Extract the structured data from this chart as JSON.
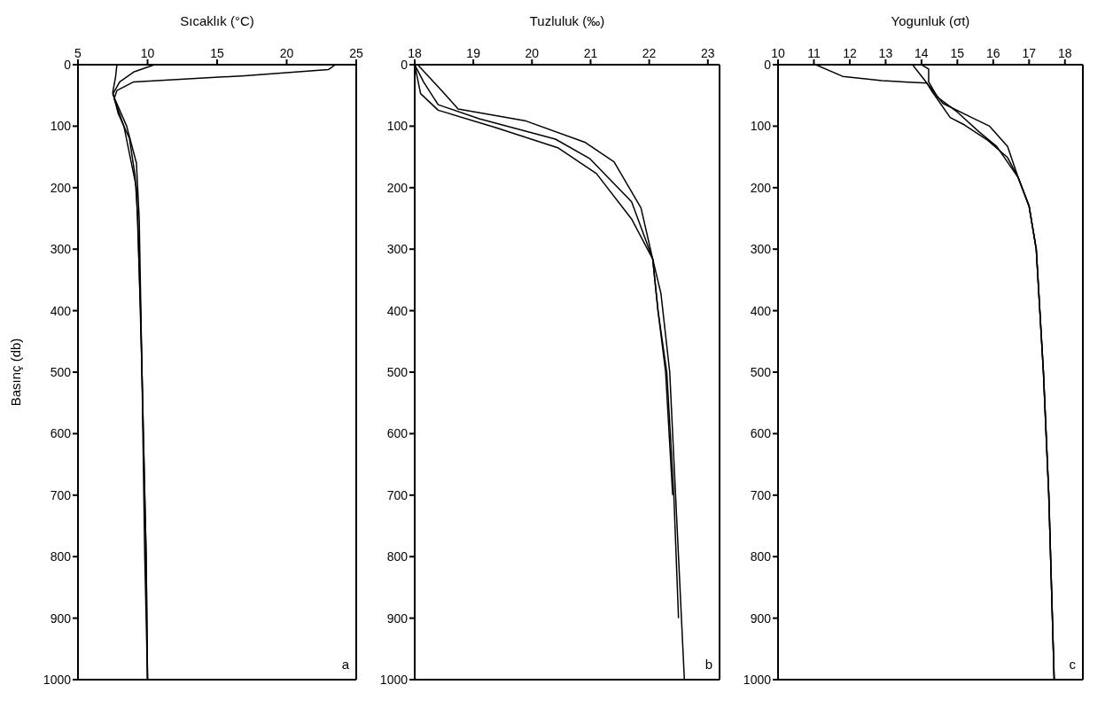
{
  "chart_data": [
    {
      "type": "line",
      "xlabel": "Sıcaklık (°C)",
      "ylabel": "Basınç (db)",
      "xlim": [
        5,
        25
      ],
      "xticks": [
        5,
        10,
        15,
        20,
        25
      ],
      "ylim": [
        1000,
        0
      ],
      "yticks": [
        0,
        100,
        200,
        300,
        400,
        500,
        600,
        700,
        800,
        900,
        1000
      ],
      "marker": "none",
      "line_style": "solid",
      "annotations": [
        "a"
      ],
      "series": [
        {
          "color": "#000000",
          "x": [
            23.5,
            23,
            17,
            9,
            7.8,
            7.6,
            8.3,
            9.2,
            9.5,
            9.7,
            9.9,
            10.0
          ],
          "values": [
            0,
            8,
            18,
            28,
            42,
            55,
            100,
            200,
            400,
            600,
            800,
            1000
          ]
        },
        {
          "color": "#000000",
          "x": [
            10.5,
            9,
            8,
            7.5,
            8.5,
            9.2,
            9.4,
            9.6,
            9.8,
            10.0
          ],
          "values": [
            0,
            12,
            28,
            48,
            100,
            160,
            250,
            500,
            800,
            1000
          ]
        },
        {
          "color": "#000000",
          "x": [
            7.8,
            7.7,
            7.5,
            7.9,
            8.7,
            9.1,
            9.3,
            9.6,
            9.9,
            10.0
          ],
          "values": [
            0,
            20,
            45,
            80,
            120,
            180,
            250,
            500,
            800,
            1000
          ]
        }
      ]
    },
    {
      "type": "line",
      "xlabel": "Tuzluluk (‰)",
      "xlim": [
        18,
        23.2
      ],
      "xticks": [
        18,
        19,
        20,
        21,
        22,
        23
      ],
      "ylim": [
        1000,
        0
      ],
      "yticks": [
        0,
        100,
        200,
        300,
        400,
        500,
        600,
        700,
        800,
        900,
        1000
      ],
      "marker": "none",
      "line_style": "solid",
      "annotations": [
        "b"
      ],
      "series": [
        {
          "color": "#000000",
          "x": [
            18.05,
            18.46,
            18.74,
            19.88,
            20.9,
            21.4,
            21.86,
            22.06,
            22.2,
            22.35,
            22.45,
            22.55,
            22.6
          ],
          "values": [
            0,
            42,
            72,
            91,
            126,
            158,
            233,
            316,
            372,
            500,
            700,
            900,
            1000
          ]
        },
        {
          "color": "#000000",
          "x": [
            18,
            18.15,
            18.4,
            19.1,
            20.4,
            20.99,
            21.7,
            22.06,
            22.15,
            22.3,
            22.42,
            22.5
          ],
          "values": [
            0,
            28,
            65,
            88,
            121,
            153,
            223,
            316,
            400,
            500,
            700,
            900
          ]
        },
        {
          "color": "#000000",
          "x": [
            18,
            18.1,
            18.4,
            19.37,
            20.44,
            21.1,
            21.7,
            22.06,
            22.15,
            22.28,
            22.4
          ],
          "values": [
            0,
            47,
            74,
            102,
            135,
            177,
            251,
            316,
            400,
            500,
            700
          ]
        }
      ]
    },
    {
      "type": "line",
      "xlabel": "Yogunluk (σt)",
      "xlim": [
        10,
        18.5
      ],
      "xticks": [
        10,
        11,
        12,
        13,
        14,
        15,
        16,
        17,
        18
      ],
      "ylim": [
        1000,
        0
      ],
      "yticks": [
        0,
        100,
        200,
        300,
        400,
        500,
        600,
        700,
        800,
        900,
        1000
      ],
      "marker": "none",
      "line_style": "solid",
      "annotations": [
        "c"
      ],
      "series": [
        {
          "color": "#000000",
          "x": [
            11.05,
            11.8,
            12.9,
            14.15,
            14.3,
            14.8,
            15.2,
            15.85,
            16.4,
            16.7,
            17.0,
            17.2,
            17.4,
            17.55,
            17.7
          ],
          "values": [
            0,
            19,
            26,
            30,
            44,
            86,
            98,
            123,
            151,
            184,
            230,
            300,
            500,
            700,
            1000
          ]
        },
        {
          "color": "#000000",
          "x": [
            13.75,
            14.15,
            14.6,
            15.4,
            15.9,
            16.4,
            16.7,
            17.0,
            17.2,
            17.4,
            17.55,
            17.7
          ],
          "values": [
            0,
            30,
            63,
            86,
            100,
            133,
            184,
            230,
            300,
            500,
            700,
            1000
          ]
        },
        {
          "color": "#000000",
          "x": [
            14.0,
            14.2,
            14.2,
            14.45,
            15.0,
            15.6,
            16.1,
            16.7,
            17.0,
            17.2,
            17.4,
            17.55,
            17.7
          ],
          "values": [
            0,
            7,
            28,
            53,
            77,
            109,
            133,
            184,
            230,
            300,
            500,
            700,
            1000
          ]
        }
      ]
    }
  ]
}
